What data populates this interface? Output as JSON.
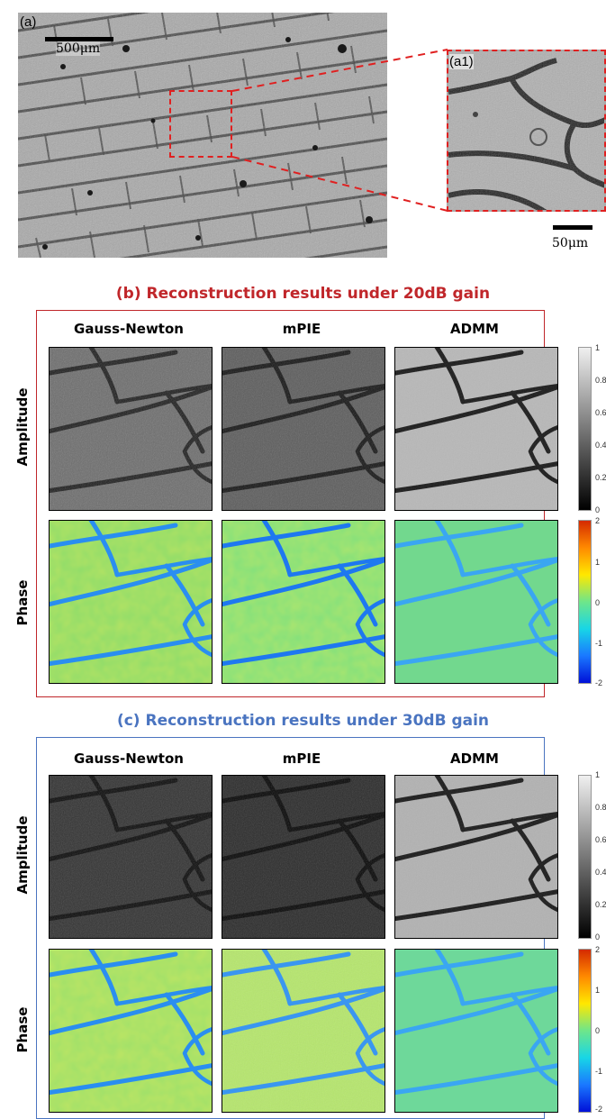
{
  "top": {
    "label_a": "(a)",
    "label_a1": "(a1)",
    "scale_a": "500μm",
    "scale_a1": "50μm"
  },
  "section_b": {
    "title": "(b) Reconstruction results under 20dB gain",
    "frame_color": "#c0262a"
  },
  "section_c": {
    "title": "(c) Reconstruction results under 30dB gain",
    "frame_color": "#4a74c0"
  },
  "columns": [
    "Gauss-Newton",
    "mPIE",
    "ADMM"
  ],
  "rows": [
    "Amplitude",
    "Phase"
  ],
  "amplitude_colorbar": {
    "ticks": [
      "1",
      "0.8",
      "0.6",
      "0.4",
      "0.2",
      "0"
    ],
    "colormap": "gray"
  },
  "phase_colorbar": {
    "ticks": [
      "2",
      "1",
      "0",
      "-1",
      "-2"
    ],
    "colormap": "jet"
  },
  "colors": {
    "highlight": "#e02020",
    "section_b": "#c0262a",
    "section_c": "#4a74c0"
  }
}
